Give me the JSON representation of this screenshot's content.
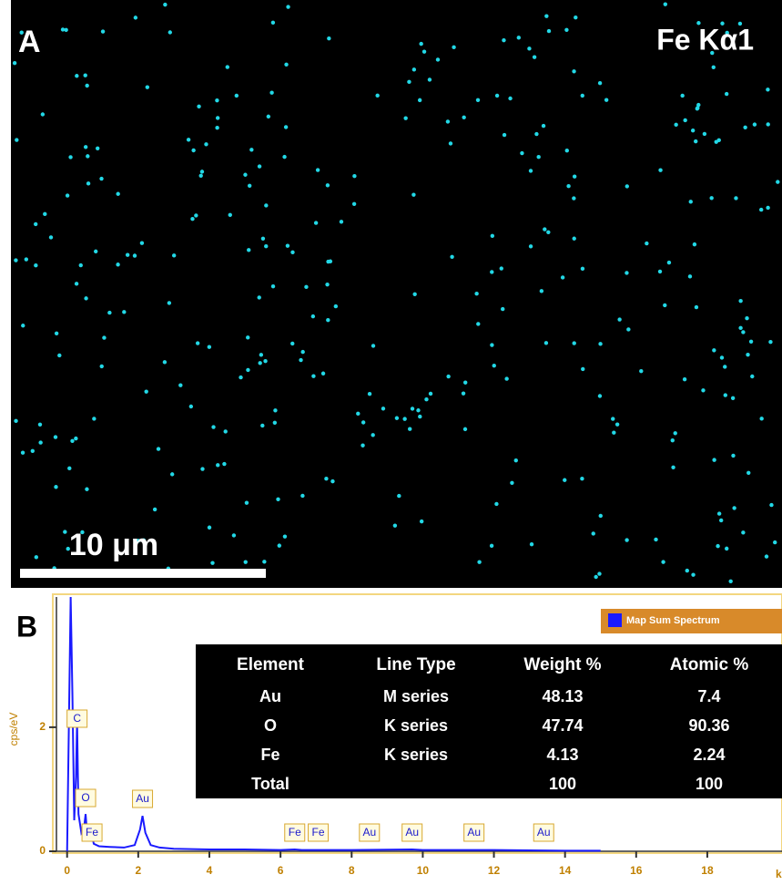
{
  "panel_a": {
    "label": "A",
    "element": "Fe Kα1",
    "scale_bar": "10 μm"
  },
  "chart_data": {
    "type": "line",
    "label": "B",
    "y_label": "cps/eV",
    "x_label": "ke",
    "legend": "Map Sum Spectrum",
    "xlim": [
      -0.3,
      20.1
    ],
    "ylim": [
      0,
      4.1
    ],
    "xticks": [
      0,
      2,
      4,
      6,
      8,
      10,
      12,
      14,
      16,
      18
    ],
    "yticks": [
      0,
      2
    ],
    "x": [
      0,
      0.1,
      0.15,
      0.2,
      0.25,
      0.28,
      0.32,
      0.4,
      0.48,
      0.52,
      0.56,
      0.65,
      0.7,
      0.75,
      0.9,
      1.2,
      1.6,
      1.9,
      2.05,
      2.12,
      2.2,
      2.35,
      2.6,
      3,
      4,
      5,
      6,
      6.4,
      6.6,
      7,
      8,
      9.7,
      10,
      12,
      14,
      15
    ],
    "series": [
      {
        "name": "Map Sum Spectrum",
        "color": "#1a1aff",
        "values": [
          0,
          4.1,
          2.5,
          0.5,
          1.2,
          2.1,
          0.6,
          0.3,
          0.4,
          0.6,
          0.3,
          0.2,
          0.25,
          0.12,
          0.08,
          0.07,
          0.06,
          0.1,
          0.35,
          0.57,
          0.3,
          0.1,
          0.06,
          0.04,
          0.03,
          0.03,
          0.02,
          0.03,
          0.02,
          0.02,
          0.02,
          0.03,
          0.02,
          0.02,
          0.01,
          0.01
        ]
      }
    ],
    "annotations": [
      {
        "text": "C",
        "x": 0.28
      },
      {
        "text": "O",
        "x": 0.52
      },
      {
        "text": "Fe",
        "x": 0.7
      },
      {
        "text": "Au",
        "x": 2.12
      },
      {
        "text": "Fe",
        "x": 6.4
      },
      {
        "text": "Fe",
        "x": 7.06
      },
      {
        "text": "Au",
        "x": 8.5
      },
      {
        "text": "Au",
        "x": 9.7
      },
      {
        "text": "Au",
        "x": 11.44
      },
      {
        "text": "Au",
        "x": 13.4
      }
    ]
  },
  "table": {
    "header": [
      "Element",
      "Line Type",
      "Weight %",
      "Atomic %"
    ],
    "rows": [
      [
        "Au",
        "M series",
        48.13,
        7.4
      ],
      [
        "O",
        "K series",
        47.74,
        90.36
      ],
      [
        "Fe",
        "K series",
        4.13,
        2.24
      ],
      [
        "Total",
        null,
        100,
        100
      ]
    ]
  }
}
